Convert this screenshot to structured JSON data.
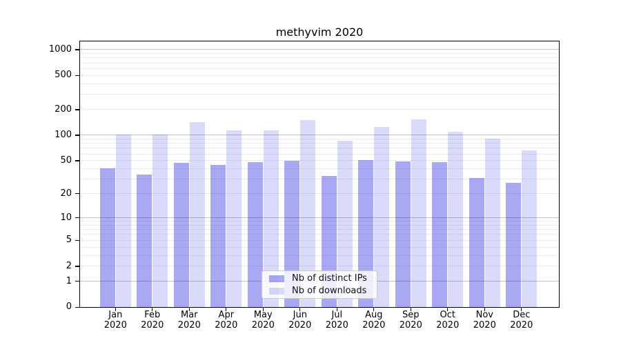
{
  "chart_data": {
    "type": "bar",
    "title": "methyvim 2020",
    "categories": [
      "Jan",
      "Feb",
      "Mar",
      "Apr",
      "May",
      "Jun",
      "Jul",
      "Aug",
      "Sep",
      "Oct",
      "Nov",
      "Dec"
    ],
    "category_year": "2020",
    "series": [
      {
        "name": "Nb of distinct IPs",
        "color": "rgba(10,10,220,0.35)",
        "solid_color": "#aaaaf2",
        "values": [
          40,
          34,
          47,
          44,
          48,
          50,
          33,
          51,
          49,
          48,
          31,
          27
        ]
      },
      {
        "name": "Nb of downloads",
        "color": "rgba(10,10,220,0.15)",
        "solid_color": "#dadaf8",
        "values": [
          102,
          101,
          141,
          114,
          114,
          150,
          86,
          125,
          154,
          110,
          90,
          66
        ]
      }
    ],
    "y_scale": "log10(1+x)",
    "y_ticks": [
      0,
      1,
      2,
      5,
      10,
      20,
      50,
      100,
      200,
      500,
      1000
    ],
    "y_major_gridlines": [
      1,
      10,
      100,
      1000
    ],
    "y_minor_gridlines": [
      2,
      3,
      4,
      5,
      6,
      7,
      8,
      9,
      20,
      30,
      40,
      50,
      60,
      70,
      80,
      90,
      200,
      300,
      400,
      500,
      600,
      700,
      800,
      900
    ],
    "ylim": [
      0,
      1250
    ],
    "grid": true,
    "legend_position": "lower center"
  },
  "colors": {
    "background": "#ffffff",
    "frame": "#000000",
    "major_grid": "#c3c3c3",
    "minor_grid": "#ececec",
    "text": "#000000",
    "legend_border": "#cccccc",
    "legend_bg": "rgba(255,255,255,0.8)"
  }
}
